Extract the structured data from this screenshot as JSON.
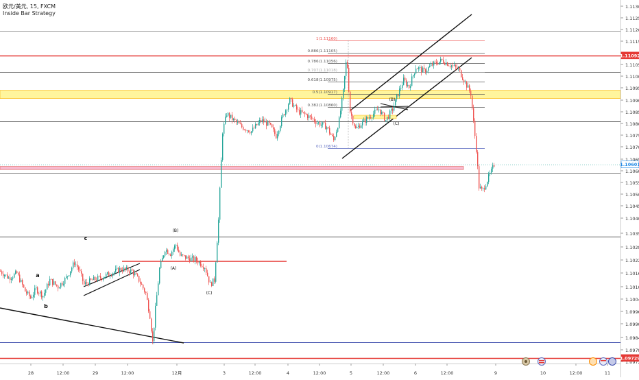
{
  "header": {
    "symbol_line": "欧元/美元, 15, FXCM",
    "strategy": "Inside Bar Strategy"
  },
  "chart_data": {
    "type": "candlestick",
    "x_ticks": [
      "28",
      "12:00",
      "29",
      "12:00",
      "12月",
      "3",
      "12:00",
      "4",
      "12:00",
      "5",
      "12:00",
      "6",
      "12:00",
      "9",
      "10",
      "12:00",
      "11"
    ],
    "y_ticks": [
      "1.11300",
      "1.11250",
      "1.11200",
      "1.11150",
      "1.11100",
      "1.11050",
      "1.11000",
      "1.10950",
      "1.10900",
      "1.10850",
      "1.10800",
      "1.10750",
      "1.10700",
      "1.10650",
      "1.10600",
      "1.10550",
      "1.10500",
      "1.10450",
      "1.10400",
      "1.10350",
      "1.10280",
      "1.10220",
      "1.10160",
      "1.10100",
      "1.10040",
      "1.09960",
      "1.09900",
      "1.09840",
      "1.09780",
      "1.09720"
    ],
    "y_range": [
      1.09704,
      1.11317
    ],
    "price_badges": [
      {
        "label": "1.11092",
        "value": 1.11092,
        "bg": "#e53935",
        "fg": "#ffffff"
      },
      {
        "label": "1.10601",
        "value": 1.10601,
        "bg": "#ffffff",
        "fg": "#1e88e5"
      },
      {
        "label": "1.09729",
        "value": 1.09729,
        "bg": "#e53935",
        "fg": "#ffffff"
      }
    ],
    "fib_levels": [
      {
        "label": "1(1.11160)",
        "value": 1.1116,
        "color": "#ef5350"
      },
      {
        "label": "0.886(1.11105)",
        "value": 1.11105,
        "color": "#555555"
      },
      {
        "label": "0.786(1.11056)",
        "value": 1.11056,
        "color": "#555555"
      },
      {
        "label": "0.707(1.11018)",
        "value": 1.11018,
        "color": "#aaaaaa"
      },
      {
        "label": "0.618(1.10975)",
        "value": 1.10975,
        "color": "#555555"
      },
      {
        "label": "0.5(1.10917)",
        "value": 1.10917,
        "color": "#555555"
      },
      {
        "label": "0.382(1.10860)",
        "value": 1.1086,
        "color": "#555555"
      },
      {
        "label": "0(1.10674)",
        "value": 1.10674,
        "color": "#5c6bc0"
      }
    ],
    "horizontal_levels": [
      {
        "value": 1.11203,
        "color": "#999999",
        "width": 1
      },
      {
        "value": 1.11092,
        "color": "#e53935",
        "width": 1.6
      },
      {
        "value": 1.11018,
        "color": "#777777",
        "width": 1
      },
      {
        "value": 1.10795,
        "color": "#555555",
        "width": 1
      },
      {
        "value": 1.10562,
        "color": "#777777",
        "width": 1
      },
      {
        "value": 1.10275,
        "color": "#555555",
        "width": 1
      },
      {
        "value": 1.098,
        "color": "#3949ab",
        "width": 1
      },
      {
        "value": 1.09729,
        "color": "#e53935",
        "width": 1.6
      }
    ],
    "zones": [
      {
        "from": 1.10898,
        "to": 1.10935,
        "color": "#fff59d",
        "border": "#fbc02d"
      },
      {
        "from": 1.10578,
        "to": 1.10592,
        "color": "#f8bbd0",
        "border": "#e57373"
      }
    ],
    "wave_labels": [
      "a",
      "b",
      "c",
      "(B)",
      "(A)",
      "(C)",
      "(B)",
      "(C)"
    ],
    "series": [
      {
        "name": "",
        "up_color": "#26a69a",
        "down_color": "#ef5350"
      }
    ],
    "path": [
      [
        0,
        1.1012
      ],
      [
        12,
        1.1009
      ],
      [
        24,
        1.1011
      ],
      [
        36,
        1.1003
      ],
      [
        44,
        1.1
      ],
      [
        52,
        1.1004
      ],
      [
        62,
        1.1001
      ],
      [
        72,
        1.1008
      ],
      [
        84,
        1.1005
      ],
      [
        96,
        1.1009
      ],
      [
        108,
        1.1016
      ],
      [
        114,
        1.1013
      ],
      [
        122,
        1.1006
      ],
      [
        134,
        1.1008
      ],
      [
        146,
        1.1009
      ],
      [
        160,
        1.1011
      ],
      [
        176,
        1.1013
      ],
      [
        192,
        1.1012
      ],
      [
        202,
        1.1008
      ],
      [
        212,
        1.1002
      ],
      [
        218,
        1.0992
      ],
      [
        222,
        1.098
      ],
      [
        226,
        1.0995
      ],
      [
        232,
        1.1013
      ],
      [
        240,
        1.1022
      ],
      [
        248,
        1.102
      ],
      [
        256,
        1.1024
      ],
      [
        262,
        1.1019
      ],
      [
        272,
        1.1018
      ],
      [
        286,
        1.1017
      ],
      [
        298,
        1.1014
      ],
      [
        306,
        1.1006
      ],
      [
        312,
        1.1008
      ],
      [
        318,
        1.1035
      ],
      [
        324,
        1.1075
      ],
      [
        330,
        1.1083
      ],
      [
        340,
        1.108
      ],
      [
        352,
        1.1077
      ],
      [
        366,
        1.1075
      ],
      [
        380,
        1.108
      ],
      [
        392,
        1.1078
      ],
      [
        402,
        1.1073
      ],
      [
        412,
        1.1082
      ],
      [
        422,
        1.1089
      ],
      [
        434,
        1.1084
      ],
      [
        448,
        1.1082
      ],
      [
        462,
        1.1079
      ],
      [
        476,
        1.1077
      ],
      [
        486,
        1.1071
      ],
      [
        494,
        1.108
      ],
      [
        500,
        1.1093
      ],
      [
        505,
        1.1109
      ],
      [
        510,
        1.1084
      ],
      [
        518,
        1.1076
      ],
      [
        528,
        1.1079
      ],
      [
        540,
        1.1082
      ],
      [
        552,
        1.1085
      ],
      [
        562,
        1.108
      ],
      [
        572,
        1.1085
      ],
      [
        580,
        1.1092
      ],
      [
        588,
        1.1098
      ],
      [
        596,
        1.1095
      ],
      [
        606,
        1.1104
      ],
      [
        618,
        1.1102
      ],
      [
        630,
        1.1105
      ],
      [
        644,
        1.1107
      ],
      [
        656,
        1.1105
      ],
      [
        668,
        1.1103
      ],
      [
        678,
        1.1097
      ],
      [
        686,
        1.1092
      ],
      [
        690,
        1.1079
      ],
      [
        694,
        1.1067
      ],
      [
        698,
        1.105
      ],
      [
        703,
        1.1048
      ],
      [
        710,
        1.1053
      ],
      [
        716,
        1.1057
      ],
      [
        720,
        1.106
      ]
    ]
  }
}
